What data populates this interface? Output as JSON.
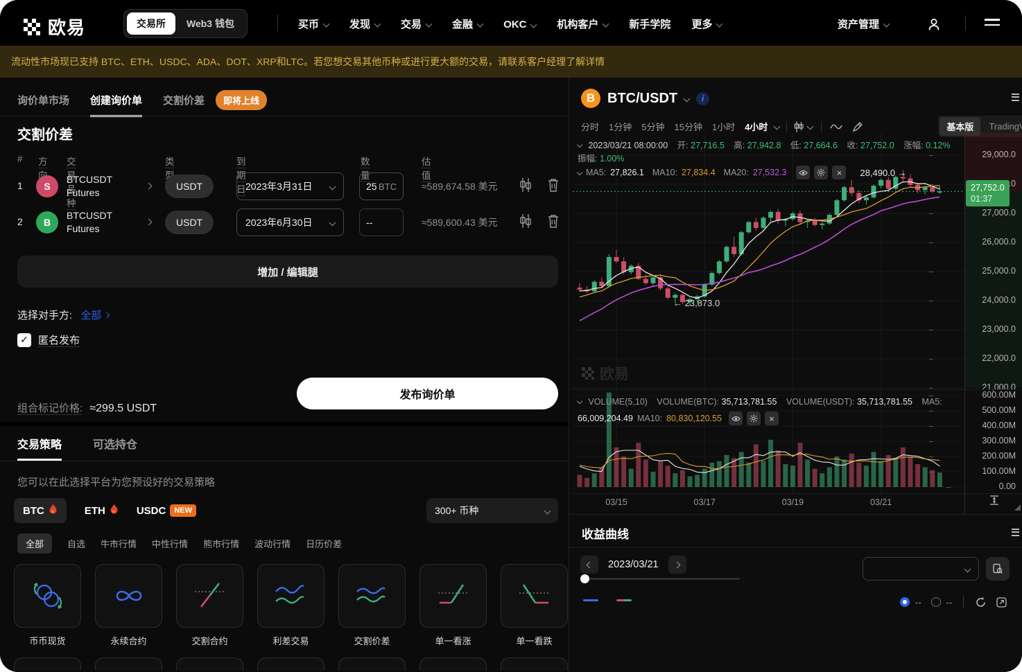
{
  "colors": {
    "up": "#3fae7a",
    "down": "#cc4e68",
    "vol_up": "#2e7a52",
    "vol_down": "#8f3f53",
    "ma5": "#e8e8e8",
    "ma10": "#d99d2b",
    "ma20": "#b84fd0",
    "accent_blue": "#2a60e8",
    "badge_green": "#3aa256",
    "banner_bg": "#33290f",
    "banner_text": "#d5b14a",
    "orange": "#e0812c"
  },
  "nav": {
    "brand": "欧易",
    "toggle": {
      "exchange": "交易所",
      "wallet": "Web3 钱包"
    },
    "items": [
      {
        "label": "买币",
        "chevron": true
      },
      {
        "label": "发现",
        "chevron": true
      },
      {
        "label": "交易",
        "chevron": true
      },
      {
        "label": "金融",
        "chevron": true
      },
      {
        "label": "OKC",
        "chevron": true
      },
      {
        "label": "机构客户",
        "chevron": true
      },
      {
        "label": "新手学院",
        "chevron": false
      },
      {
        "label": "更多",
        "chevron": true
      }
    ],
    "assets_label": "资产管理"
  },
  "banner": {
    "text": "流动性市场现已支持 BTC、ETH、USDC、ADA、DOT、XRP和LTC。若您想交易其他币种或进行更大额的交易，请联系客户经理了解详情"
  },
  "rfq": {
    "tabs": [
      {
        "label": "询价单市场",
        "active": false
      },
      {
        "label": "创建询价单",
        "active": true
      },
      {
        "label": "交割价差",
        "active": false
      }
    ],
    "coming_soon": "即将上线",
    "title": "交割价差",
    "table": {
      "headers": [
        "#",
        "方向",
        "交易品种",
        "类型",
        "到期日",
        "数量",
        "估值"
      ],
      "rows": [
        {
          "num": "1",
          "side": "S",
          "side_color": "#cf4a68",
          "symbol": "BTCUSDT",
          "product": "Futures",
          "type": "USDT",
          "expiry": "2023年3月31日",
          "qty": "25",
          "qty_unit": "BTC",
          "value": "≈589,674.58 美元"
        },
        {
          "num": "2",
          "side": "B",
          "side_color": "#2fa85c",
          "symbol": "BTCUSDT",
          "product": "Futures",
          "type": "USDT",
          "expiry": "2023年6月30日",
          "qty": "--",
          "qty_unit": "",
          "value": "≈589,600.43 美元"
        }
      ]
    },
    "add_leg": "增加 / 编辑腿",
    "counterparty_label": "选择对手方:",
    "counterparty_value": "全部",
    "anonymous_label": "匿名发布",
    "mark_price_label": "组合标记价格:",
    "mark_price_value": "≈299.5 USDT",
    "publish": "发布询价单"
  },
  "strategies": {
    "tabs": [
      {
        "label": "交易策略",
        "active": true
      },
      {
        "label": "可选持仓",
        "active": false
      }
    ],
    "description": "您可以在此选择平台为您预设好的交易策略",
    "coins": [
      {
        "label": "BTC",
        "flame": true,
        "selected": true
      },
      {
        "label": "ETH",
        "flame": true,
        "selected": false
      },
      {
        "label": "USDC",
        "badge": "NEW",
        "selected": false
      }
    ],
    "coin_select": "300+ 币种",
    "filters": [
      {
        "label": "全部",
        "active": true
      },
      {
        "label": "自选",
        "active": false
      },
      {
        "label": "牛市行情",
        "active": false
      },
      {
        "label": "中性行情",
        "active": false
      },
      {
        "label": "熊市行情",
        "active": false
      },
      {
        "label": "波动行情",
        "active": false
      },
      {
        "label": "日历价差",
        "active": false
      }
    ],
    "cards": [
      {
        "label": "币币现货",
        "icon": "spot-cycle-icon"
      },
      {
        "label": "永续合约",
        "icon": "infinity-icon"
      },
      {
        "label": "交割合约",
        "icon": "futures-line-icon"
      },
      {
        "label": "利差交易",
        "icon": "carry-waves-icon"
      },
      {
        "label": "交割价差",
        "icon": "spread-waves-icon"
      },
      {
        "label": "单一看涨",
        "icon": "single-call-icon"
      },
      {
        "label": "单一看跌",
        "icon": "single-put-icon"
      }
    ]
  },
  "chart": {
    "pair": "BTC/USDT",
    "timeframes": [
      "分时",
      "1分钟",
      "5分钟",
      "15分钟",
      "1小时",
      "4小时"
    ],
    "selected_timeframe": "4小时",
    "view_tabs": {
      "basic": "基本版",
      "tv": "TradingView"
    },
    "info": {
      "datetime": "2023/03/21 08:00:00",
      "open_label": "开:",
      "open": "27,716.5",
      "high_label": "高:",
      "high": "27,942.8",
      "low_label": "低:",
      "low": "27,664.6",
      "close_label": "收:",
      "close": "27,752.0",
      "change_label": "涨幅:",
      "change": "0.12%",
      "amp_label": "振幅:",
      "amp": "1.00%"
    },
    "ma": {
      "ma5_label": "MA5:",
      "ma5": "27,826.1",
      "ma10_label": "MA10:",
      "ma10": "27,834.4",
      "ma20_label": "MA20:",
      "ma20": "27,532.3"
    },
    "high_annotation": "28,490.0 →",
    "low_annotation": "← 23,873.0",
    "price_badge": {
      "price": "27,752.0",
      "time": "01:37"
    },
    "watermark": "欧易",
    "volume_info": {
      "title": "VOLUME(5,10)",
      "btc_label": "VOLUME(BTC):",
      "btc": "35,713,781.55",
      "usdt_label": "VOLUME(USDT):",
      "usdt": "35,713,781.55",
      "ma5_label": "MA5:",
      "ma5": "66,009,204.49",
      "ma10_label": "MA10:",
      "ma10": "80,830,120.55"
    }
  },
  "chart_data": {
    "type": "candlestick+volume",
    "pair": "BTC/USDT",
    "interval": "4h",
    "price_ticks": [
      {
        "p": 29000,
        "label": "29,000.0"
      },
      {
        "p": 28000,
        "label": "28,000.0"
      },
      {
        "p": 27000,
        "label": "27,000.0"
      },
      {
        "p": 26000,
        "label": "26,000.0"
      },
      {
        "p": 25000,
        "label": "25,000.0"
      },
      {
        "p": 24000,
        "label": "24,000.0"
      },
      {
        "p": 23000,
        "label": "23,000.0"
      },
      {
        "p": 22000,
        "label": "22,000.0"
      },
      {
        "p": 21000,
        "label": "21,000.0"
      }
    ],
    "volume_ticks": [
      {
        "v": 600,
        "label": "600.00M"
      },
      {
        "v": 500,
        "label": "500.00M"
      },
      {
        "v": 400,
        "label": "400.00M"
      },
      {
        "v": 300,
        "label": "300.00M"
      },
      {
        "v": 200,
        "label": "200.00M"
      },
      {
        "v": 100,
        "label": "100.00M"
      },
      {
        "v": 0,
        "label": "0.00"
      }
    ],
    "x_ticks": [
      {
        "i": 5,
        "label": "03/15"
      },
      {
        "i": 17,
        "label": "03/17"
      },
      {
        "i": 29,
        "label": "03/19"
      },
      {
        "i": 41,
        "label": "03/21"
      }
    ],
    "last_price": 27752,
    "prehistory_closes": [
      21400,
      21600,
      21800,
      22000,
      22200,
      22400,
      22600,
      22800,
      23000,
      23200,
      23400,
      23600,
      23800,
      23950,
      24050,
      24150,
      24250,
      24300,
      24350,
      24400
    ],
    "candles": [
      [
        24450,
        24600,
        24300,
        24380,
        80
      ],
      [
        24380,
        24500,
        24250,
        24320,
        60
      ],
      [
        24320,
        24700,
        24300,
        24650,
        90
      ],
      [
        24650,
        24800,
        24450,
        24500,
        130
      ],
      [
        24500,
        25600,
        24450,
        25500,
        620
      ],
      [
        25500,
        25750,
        25300,
        25350,
        260
      ],
      [
        25350,
        25500,
        24900,
        24980,
        200
      ],
      [
        24980,
        25250,
        24900,
        25200,
        120
      ],
      [
        25200,
        25300,
        24700,
        24750,
        290
      ],
      [
        24750,
        24900,
        24550,
        24600,
        180
      ],
      [
        24600,
        24850,
        24500,
        24800,
        100
      ],
      [
        24800,
        24850,
        24350,
        24420,
        170
      ],
      [
        24420,
        24500,
        24050,
        24100,
        140
      ],
      [
        24100,
        24250,
        23900,
        24200,
        90
      ],
      [
        24200,
        24250,
        23873,
        23950,
        110
      ],
      [
        23950,
        24100,
        23820,
        24050,
        70
      ],
      [
        24050,
        24200,
        23900,
        24150,
        80
      ],
      [
        24150,
        24600,
        24100,
        24550,
        120
      ],
      [
        24550,
        25000,
        24500,
        24950,
        160
      ],
      [
        24950,
        25400,
        24900,
        25350,
        170
      ],
      [
        25350,
        25900,
        25300,
        25850,
        210
      ],
      [
        25850,
        26200,
        25500,
        25600,
        190
      ],
      [
        25600,
        26400,
        25550,
        26350,
        230
      ],
      [
        26350,
        26750,
        26300,
        26700,
        160
      ],
      [
        26700,
        26850,
        26400,
        26500,
        280
      ],
      [
        26500,
        26900,
        26450,
        26850,
        170
      ],
      [
        26850,
        27100,
        26700,
        27050,
        310
      ],
      [
        27050,
        27150,
        26650,
        26750,
        240
      ],
      [
        26750,
        26850,
        26550,
        26800,
        150
      ],
      [
        26800,
        27050,
        26750,
        27000,
        140
      ],
      [
        27000,
        27100,
        26600,
        26700,
        290
      ],
      [
        26700,
        26800,
        26500,
        26750,
        180
      ],
      [
        26750,
        26850,
        26550,
        26600,
        120
      ],
      [
        26600,
        26700,
        26450,
        26650,
        90
      ],
      [
        26650,
        27000,
        26600,
        26950,
        130
      ],
      [
        26950,
        27500,
        26900,
        27450,
        200
      ],
      [
        27450,
        27950,
        27400,
        27900,
        180
      ],
      [
        27900,
        28150,
        27600,
        27700,
        220
      ],
      [
        27700,
        27800,
        27350,
        27450,
        160
      ],
      [
        27450,
        27600,
        27300,
        27550,
        140
      ],
      [
        27550,
        28000,
        27500,
        27950,
        230
      ],
      [
        27950,
        28200,
        27850,
        28150,
        170
      ],
      [
        28150,
        28250,
        27750,
        27850,
        210
      ],
      [
        27850,
        28300,
        27800,
        28250,
        190
      ],
      [
        28250,
        28490,
        28100,
        28200,
        260
      ],
      [
        28200,
        28350,
        27900,
        27980,
        200
      ],
      [
        27980,
        28050,
        27700,
        27800,
        150
      ],
      [
        27800,
        27950,
        27650,
        27900,
        130
      ],
      [
        27900,
        28000,
        27700,
        27752,
        110
      ],
      [
        27716.5,
        27942.8,
        27664.6,
        27752,
        95
      ]
    ]
  },
  "pnl": {
    "title": "收益曲线",
    "date": "2023/03/21",
    "radio1_label": "--",
    "radio2_label": "--"
  }
}
